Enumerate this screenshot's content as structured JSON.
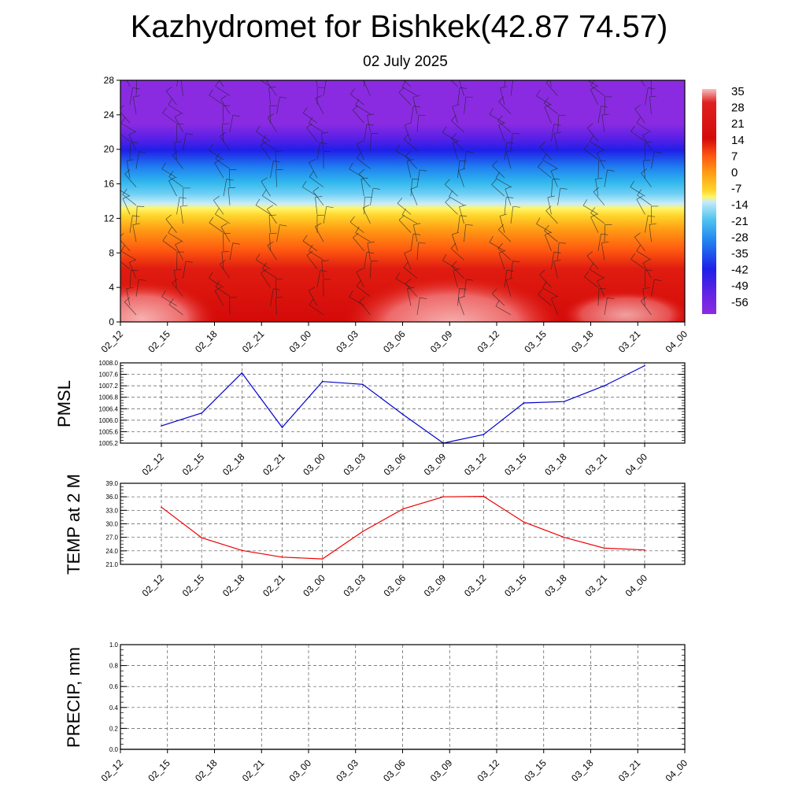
{
  "header": {
    "title": "Kazhydromet for Bishkek(42.87 74.57)",
    "subtitle": "02 July 2025"
  },
  "chart_data": [
    {
      "type": "heatmap",
      "description_id": "vertical-cross-section",
      "x_categories": [
        "02_12",
        "02_15",
        "02_18",
        "02_21",
        "03_00",
        "03_03",
        "03_06",
        "03_09",
        "03_12",
        "03_15",
        "03_18",
        "03_21",
        "04_00"
      ],
      "y_ticks": [
        "0",
        "4",
        "8",
        "12",
        "16",
        "20",
        "24",
        "28"
      ],
      "ylim": [
        0,
        28
      ],
      "colorbar_labels": [
        "35",
        "28",
        "21",
        "14",
        "7",
        "0",
        "-7",
        "-14",
        "-21",
        "-28",
        "-35",
        "-42",
        "-49",
        "-56"
      ],
      "colorbar_range": [
        -60,
        38
      ],
      "wind_barbs": true,
      "colors": {
        "violet": "#8a2be2",
        "blue": "#1f1fe8",
        "cyan": "#2fb6ee",
        "yellow": "#fff24a",
        "orange": "#ff8a12",
        "red": "#d40a0a",
        "pink": "#f3a7a7"
      }
    },
    {
      "type": "line",
      "ylabel": "PMSL",
      "x": [
        "02_12",
        "02_15",
        "02_18",
        "02_21",
        "03_00",
        "03_03",
        "03_06",
        "03_09",
        "03_12",
        "03_15",
        "03_18",
        "03_21",
        "04_00"
      ],
      "series": [
        {
          "color": "#0000cc",
          "values": [
            1005.8,
            1006.25,
            1007.65,
            1005.75,
            1007.35,
            1007.25,
            1006.2,
            1005.2,
            1005.5,
            1006.6,
            1006.65,
            1007.2,
            1007.9
          ]
        }
      ],
      "ylim": [
        1005.2,
        1008.0
      ],
      "y_ticks": [
        "1005.2",
        "1005.6",
        "1006.0",
        "1006.4",
        "1006.8",
        "1007.2",
        "1007.6",
        "1008.0"
      ],
      "grid": true
    },
    {
      "type": "line",
      "ylabel": "TEMP at 2 M",
      "x": [
        "02_12",
        "02_15",
        "02_18",
        "02_21",
        "03_00",
        "03_03",
        "03_06",
        "03_09",
        "03_12",
        "03_15",
        "03_18",
        "03_21",
        "04_00"
      ],
      "series": [
        {
          "color": "#ee0000",
          "values": [
            33.7,
            26.9,
            24.1,
            22.6,
            22.2,
            28.3,
            33.3,
            36.0,
            36.1,
            30.4,
            27.0,
            24.6,
            24.2
          ]
        }
      ],
      "ylim": [
        21.0,
        39.0
      ],
      "y_ticks": [
        "21.0",
        "24.0",
        "27.0",
        "30.0",
        "33.0",
        "36.0",
        "39.0"
      ],
      "grid": true
    },
    {
      "type": "line",
      "ylabel": "PRECIP, mm",
      "x": [
        "02_12",
        "02_15",
        "02_18",
        "02_21",
        "03_00",
        "03_03",
        "03_06",
        "03_09",
        "03_12",
        "03_15",
        "03_18",
        "03_21",
        "04_00"
      ],
      "series": [
        {
          "color": "#006600",
          "values": [
            0,
            0,
            0,
            0,
            0,
            0,
            0,
            0,
            0,
            0,
            0,
            0,
            0
          ]
        }
      ],
      "ylim": [
        0.0,
        1.0
      ],
      "y_ticks": [
        "0.0",
        "0.2",
        "0.4",
        "0.6",
        "0.8",
        "1.0"
      ],
      "grid": true
    }
  ]
}
